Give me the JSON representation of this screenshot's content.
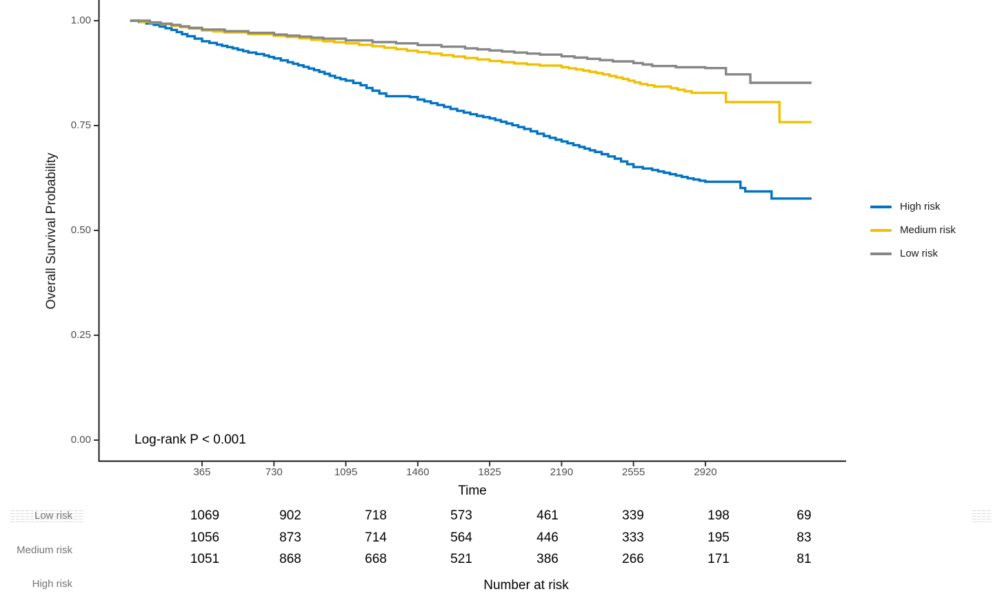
{
  "figure": {
    "background": "#ffffff",
    "ylabel": "Overall Survival Probability",
    "xlabel": "Time",
    "annotation": "Log-rank P < 0.001",
    "axis_color": "#1a1a1a",
    "tick_color": "#333333",
    "tick_label_color": "#4d4d4d"
  },
  "legend": {
    "position": "right",
    "items": [
      {
        "label": "High risk",
        "color": "#0073C2"
      },
      {
        "label": "Medium risk",
        "color": "#EFC000"
      },
      {
        "label": "Low risk",
        "color": "#868686"
      }
    ]
  },
  "risk_table": {
    "title": "Number at risk",
    "times": [
      365,
      730,
      1095,
      1460,
      1825,
      2190,
      2555,
      2920
    ],
    "rows": [
      {
        "label": "Low risk",
        "values": [
          "1069",
          "902",
          "718",
          "573",
          "461",
          "339",
          "198",
          "69"
        ]
      },
      {
        "label": "Medium risk",
        "values": [
          "1056",
          "873",
          "714",
          "564",
          "446",
          "333",
          "195",
          "83"
        ]
      },
      {
        "label": "High risk",
        "values": [
          "1051",
          "868",
          "668",
          "521",
          "386",
          "266",
          "171",
          "81"
        ]
      }
    ]
  },
  "chart_data": {
    "type": "line",
    "subtype": "kaplan-meier-step-curves",
    "title": "",
    "xlabel": "Time",
    "ylabel": "Overall Survival Probability",
    "xlim": [
      0,
      3660
    ],
    "ylim": [
      0.0,
      1.05
    ],
    "x_ticks": [
      365,
      730,
      1095,
      1460,
      1825,
      2190,
      2555,
      2920
    ],
    "y_ticks": [
      0.0,
      0.25,
      0.5,
      0.75,
      1.0
    ],
    "y_tick_labels": [
      "0.00",
      "0.25",
      "0.50",
      "0.75",
      "1.00"
    ],
    "grid": false,
    "legend_position": "right",
    "annotation": "Log-rank P < 0.001",
    "series": [
      {
        "name": "High risk",
        "color": "#0073C2",
        "points": [
          [
            0,
            1.0
          ],
          [
            45,
            0.997
          ],
          [
            120,
            0.99
          ],
          [
            210,
            0.978
          ],
          [
            290,
            0.963
          ],
          [
            365,
            0.951
          ],
          [
            440,
            0.943
          ],
          [
            520,
            0.934
          ],
          [
            600,
            0.924
          ],
          [
            680,
            0.917
          ],
          [
            730,
            0.91
          ],
          [
            800,
            0.901
          ],
          [
            880,
            0.89
          ],
          [
            960,
            0.878
          ],
          [
            1040,
            0.864
          ],
          [
            1095,
            0.857
          ],
          [
            1170,
            0.846
          ],
          [
            1230,
            0.833
          ],
          [
            1300,
            0.82
          ],
          [
            1420,
            0.818
          ],
          [
            1460,
            0.812
          ],
          [
            1560,
            0.799
          ],
          [
            1660,
            0.785
          ],
          [
            1760,
            0.773
          ],
          [
            1825,
            0.767
          ],
          [
            1910,
            0.755
          ],
          [
            2000,
            0.742
          ],
          [
            2100,
            0.725
          ],
          [
            2190,
            0.712
          ],
          [
            2280,
            0.699
          ],
          [
            2360,
            0.687
          ],
          [
            2460,
            0.671
          ],
          [
            2555,
            0.651
          ],
          [
            2650,
            0.644
          ],
          [
            2740,
            0.634
          ],
          [
            2830,
            0.624
          ],
          [
            2920,
            0.616
          ],
          [
            3090,
            0.616
          ],
          [
            3098,
            0.601
          ],
          [
            3115,
            0.601
          ],
          [
            3122,
            0.593
          ],
          [
            3248,
            0.593
          ],
          [
            3256,
            0.576
          ],
          [
            3459,
            0.576
          ]
        ]
      },
      {
        "name": "Medium risk",
        "color": "#EFC000",
        "points": [
          [
            0,
            1.0
          ],
          [
            100,
            0.995
          ],
          [
            210,
            0.988
          ],
          [
            300,
            0.981
          ],
          [
            365,
            0.977
          ],
          [
            480,
            0.972
          ],
          [
            600,
            0.968
          ],
          [
            730,
            0.964
          ],
          [
            860,
            0.958
          ],
          [
            980,
            0.951
          ],
          [
            1095,
            0.946
          ],
          [
            1230,
            0.939
          ],
          [
            1350,
            0.932
          ],
          [
            1460,
            0.925
          ],
          [
            1580,
            0.918
          ],
          [
            1700,
            0.911
          ],
          [
            1825,
            0.904
          ],
          [
            1950,
            0.898
          ],
          [
            2080,
            0.893
          ],
          [
            2190,
            0.889
          ],
          [
            2300,
            0.881
          ],
          [
            2400,
            0.872
          ],
          [
            2500,
            0.861
          ],
          [
            2590,
            0.849
          ],
          [
            2660,
            0.843
          ],
          [
            2745,
            0.839
          ],
          [
            2850,
            0.828
          ],
          [
            3016,
            0.828
          ],
          [
            3024,
            0.806
          ],
          [
            3288,
            0.806
          ],
          [
            3296,
            0.758
          ],
          [
            3459,
            0.758
          ]
        ]
      },
      {
        "name": "Low risk",
        "color": "#868686",
        "points": [
          [
            0,
            1.0
          ],
          [
            100,
            0.996
          ],
          [
            210,
            0.99
          ],
          [
            300,
            0.983
          ],
          [
            365,
            0.979
          ],
          [
            480,
            0.975
          ],
          [
            600,
            0.971
          ],
          [
            730,
            0.967
          ],
          [
            860,
            0.962
          ],
          [
            980,
            0.957
          ],
          [
            1095,
            0.953
          ],
          [
            1230,
            0.949
          ],
          [
            1350,
            0.946
          ],
          [
            1460,
            0.942
          ],
          [
            1580,
            0.938
          ],
          [
            1700,
            0.934
          ],
          [
            1825,
            0.929
          ],
          [
            1950,
            0.924
          ],
          [
            2080,
            0.919
          ],
          [
            2190,
            0.915
          ],
          [
            2320,
            0.909
          ],
          [
            2450,
            0.903
          ],
          [
            2555,
            0.899
          ],
          [
            2650,
            0.892
          ],
          [
            2770,
            0.889
          ],
          [
            2920,
            0.887
          ],
          [
            3016,
            0.887
          ],
          [
            3024,
            0.872
          ],
          [
            3140,
            0.872
          ],
          [
            3148,
            0.852
          ],
          [
            3459,
            0.852
          ]
        ]
      }
    ],
    "number_at_risk": {
      "title": "Number at risk",
      "times": [
        365,
        730,
        1095,
        1460,
        1825,
        2190,
        2555,
        2920
      ],
      "rows": [
        {
          "label": "Low risk",
          "values": [
            1069,
            902,
            718,
            573,
            461,
            339,
            198,
            69
          ]
        },
        {
          "label": "Medium risk",
          "values": [
            1056,
            873,
            714,
            564,
            446,
            333,
            195,
            83
          ]
        },
        {
          "label": "High risk",
          "values": [
            1051,
            868,
            668,
            521,
            386,
            266,
            171,
            81
          ]
        }
      ]
    }
  }
}
